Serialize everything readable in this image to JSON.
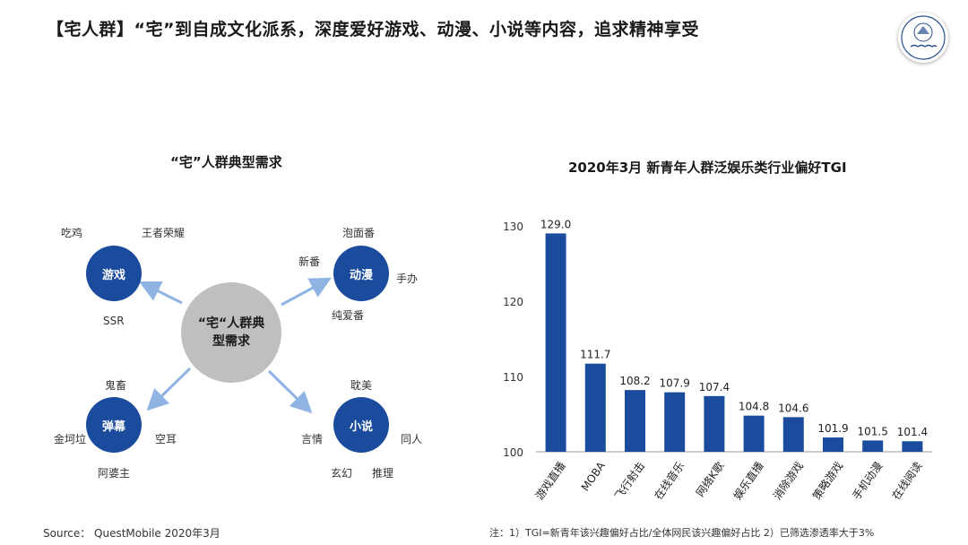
{
  "page": {
    "title": "【宅人群】“宅”到自成文化派系，深度爱好游戏、动漫、小说等内容，追求精神享受"
  },
  "left_diagram": {
    "title": "“宅”人群典型需求",
    "center_label": "“宅“人群典型需求",
    "categories": [
      {
        "name": "游戏",
        "items": [
          "吃鸡",
          "王者荣耀",
          "SSR"
        ]
      },
      {
        "name": "动漫",
        "items": [
          "泡面番",
          "新番",
          "手办",
          "纯爱番"
        ]
      },
      {
        "name": "弹幕",
        "items": [
          "鬼畜",
          "金坷垃",
          "空耳",
          "阿婆主"
        ]
      },
      {
        "name": "小说",
        "items": [
          "耽美",
          "言情",
          "同人",
          "玄幻",
          "推理"
        ]
      }
    ],
    "colors": {
      "category_fill": "#1a4b9c",
      "center_fill": "#bfbfbf",
      "arrow": "#8fb4e3"
    }
  },
  "chart_data": {
    "type": "bar",
    "title": "2020年3月 新青年人群泛娱乐类行业偏好TGI",
    "categories": [
      "游戏直播",
      "MOBA",
      "飞行射击",
      "在线音乐",
      "网络K歌",
      "娱乐直播",
      "消除游戏",
      "策略游戏",
      "手机动漫",
      "在线阅读"
    ],
    "values": [
      129.0,
      111.7,
      108.2,
      107.9,
      107.4,
      104.8,
      104.6,
      101.9,
      101.5,
      101.4
    ],
    "value_labels": [
      "129.0",
      "111.7",
      "108.2",
      "107.9",
      "107.4",
      "104.8",
      "104.6",
      "101.9",
      "101.5",
      "101.4"
    ],
    "yticks": [
      100,
      110,
      120,
      130
    ],
    "ylim": [
      100,
      130
    ],
    "color": "#1a4b9c",
    "grid": false
  },
  "footer": {
    "source": "Source： QuestMobile 2020年3月",
    "note": "注：1）TGI=新青年该兴趣偏好占比/全体网民该兴趣偏好占比 2）已筛选渗透率大于3%"
  }
}
